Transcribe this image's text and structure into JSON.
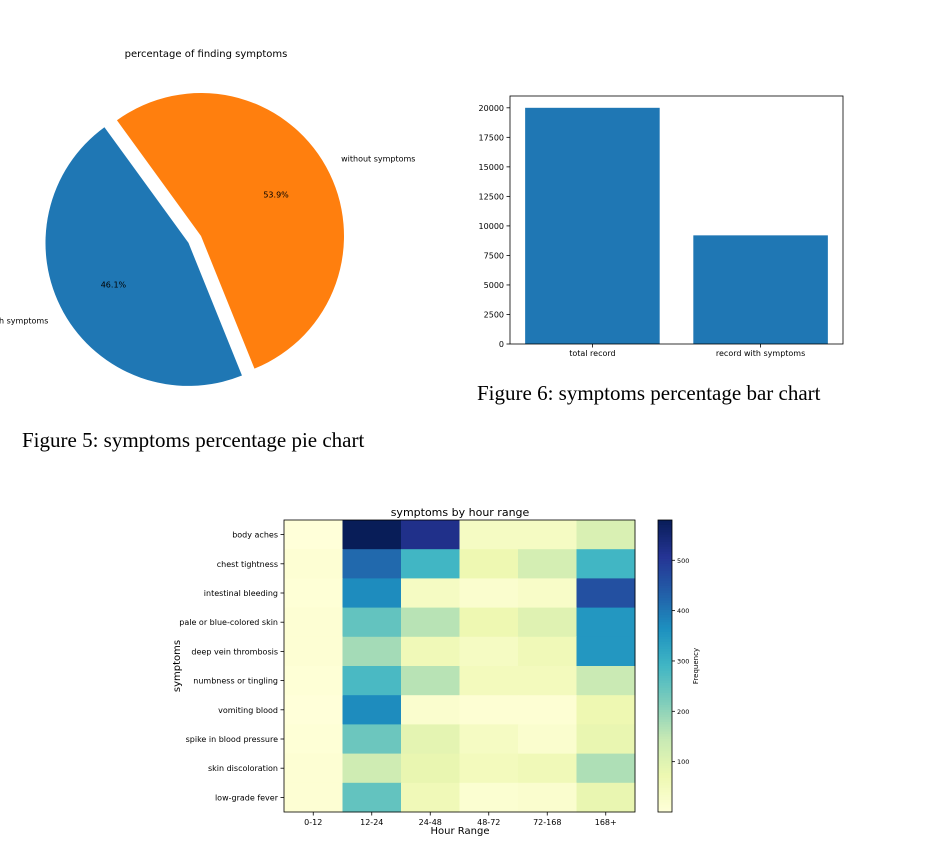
{
  "figures": {
    "pie_caption": "Figure 5:   symptoms percentage pie chart",
    "bar_caption": "Figure 6:   symptoms percentage bar chart"
  },
  "chart_data": [
    {
      "type": "pie",
      "title": "percentage of finding symptoms",
      "labels": [
        "with symptoms",
        "without symptoms"
      ],
      "values": [
        46.1,
        53.9
      ],
      "value_labels": [
        "46.1%",
        "53.9%"
      ],
      "exploded": [
        "with symptoms"
      ],
      "colors": [
        "#1f77b4",
        "#ff7f0e"
      ]
    },
    {
      "type": "bar",
      "categories": [
        "total record",
        "record with symptoms"
      ],
      "values": [
        20000,
        9200
      ],
      "ylim": [
        0,
        21000
      ],
      "yticks": [
        0,
        2500,
        5000,
        7500,
        10000,
        12500,
        15000,
        17500,
        20000
      ],
      "color": "#1f77b4",
      "grid": false
    },
    {
      "type": "heatmap",
      "title": "symptoms by hour range",
      "xlabel": "Hour Range",
      "ylabel": "symptoms",
      "x": [
        "0-12",
        "12-24",
        "24-48",
        "48-72",
        "72-168",
        "168+"
      ],
      "y": [
        "body aches",
        "chest tightness",
        "intestinal bleeding",
        "pale or blue-colored skin",
        "deep vein thrombosis",
        "numbness or tingling",
        "vomiting blood",
        "spike in blood pressure",
        "skin discoloration",
        "low-grade fever"
      ],
      "values": [
        [
          0,
          580,
          520,
          40,
          40,
          110
        ],
        [
          10,
          420,
          290,
          70,
          120,
          290
        ],
        [
          5,
          370,
          40,
          20,
          30,
          460
        ],
        [
          10,
          250,
          160,
          70,
          100,
          350
        ],
        [
          10,
          180,
          60,
          40,
          60,
          350
        ],
        [
          5,
          280,
          160,
          50,
          50,
          140
        ],
        [
          0,
          370,
          20,
          10,
          10,
          70
        ],
        [
          5,
          240,
          90,
          40,
          20,
          80
        ],
        [
          10,
          130,
          80,
          50,
          60,
          170
        ],
        [
          10,
          250,
          60,
          15,
          20,
          80
        ]
      ],
      "colorbar": {
        "label": "Frequency",
        "ticks": [
          100,
          200,
          300,
          400,
          500
        ],
        "min": 0,
        "max": 580
      },
      "colormap": "YlGnBu"
    }
  ]
}
